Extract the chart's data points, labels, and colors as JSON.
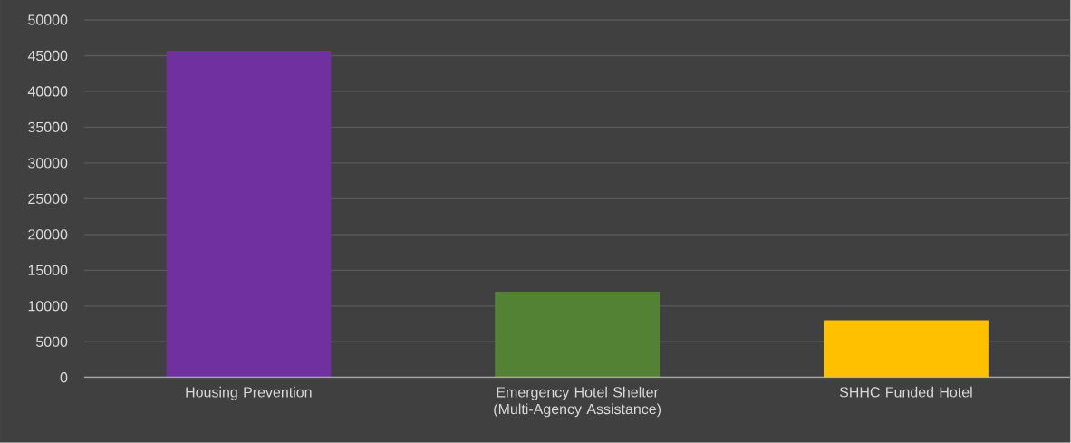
{
  "chart_data": {
    "type": "bar",
    "categories": [
      "Housing Prevention",
      "Emergency Hotel Shelter (Multi-Agency Assistance)",
      "SHHC Funded Hotel"
    ],
    "values": [
      45700,
      12000,
      8000
    ],
    "colors": [
      "#7030a0",
      "#548235",
      "#ffc000"
    ],
    "ylim": [
      0,
      50000
    ],
    "yticks": [
      0,
      5000,
      10000,
      15000,
      20000,
      25000,
      30000,
      35000,
      40000,
      45000,
      50000
    ],
    "grid": "y"
  }
}
